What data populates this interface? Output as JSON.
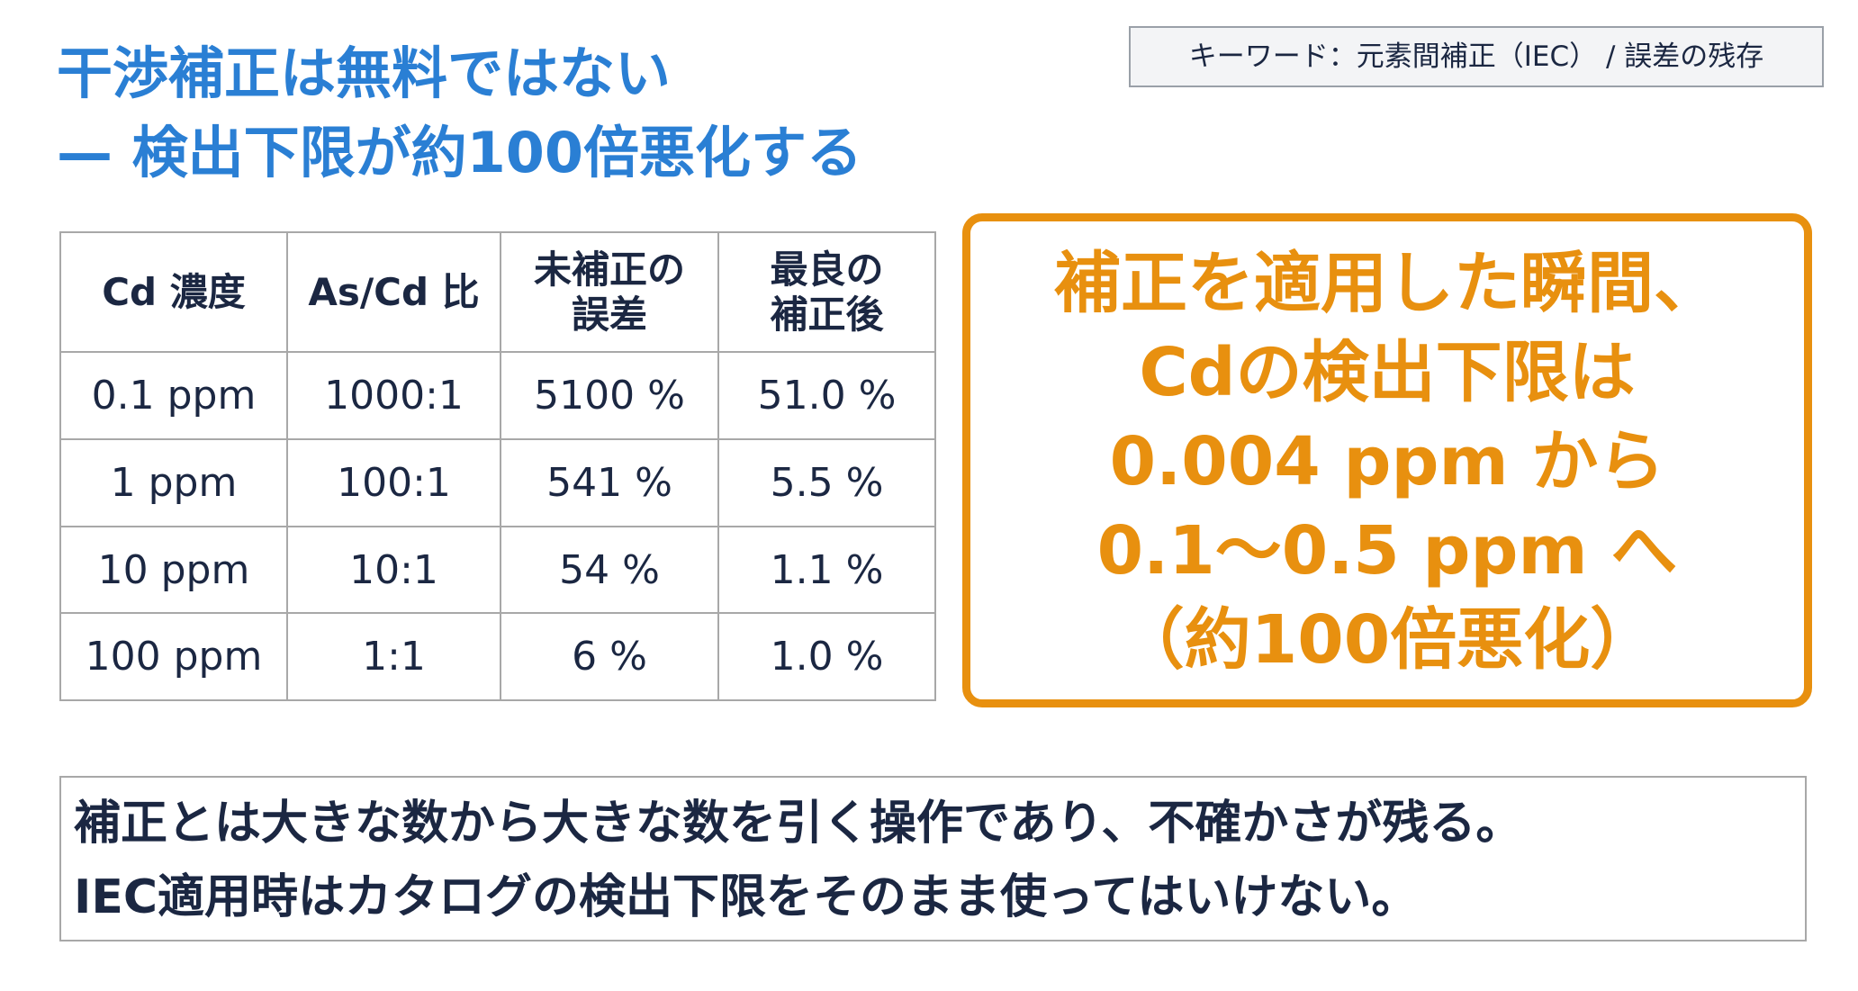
{
  "title": {
    "lines": [
      "干渉補正は無料ではない",
      "— 検出下限が約100倍悪化する"
    ]
  },
  "keyword": "キーワード：元素間補正（IEC） / 誤差の残存",
  "table": {
    "header": [
      [
        "Cd 濃度"
      ],
      [
        "As/Cd 比"
      ],
      [
        "未補正の",
        "誤差"
      ],
      [
        "最良の",
        "補正後"
      ]
    ],
    "rows": [
      [
        "0.1 ppm",
        "1000:1",
        "5100 %",
        "51.0 %"
      ],
      [
        "1 ppm",
        "100:1",
        "541 %",
        "5.5 %"
      ],
      [
        "10 ppm",
        "10:1",
        "54 %",
        "1.1 %"
      ],
      [
        "100 ppm",
        "1:1",
        "6 %",
        "1.0 %"
      ]
    ]
  },
  "callout": {
    "lines": [
      "補正を適用した瞬間、",
      "Cdの検出下限は",
      "0.004 ppm から",
      "0.1〜0.5 ppm へ",
      "（約100倍悪化）"
    ]
  },
  "summary": {
    "lines": [
      "補正とは大きな数から大きな数を引く操作であり、不確かさが残る。",
      "IEC適用時はカタログの検出下限をそのまま使ってはいけない。"
    ]
  }
}
